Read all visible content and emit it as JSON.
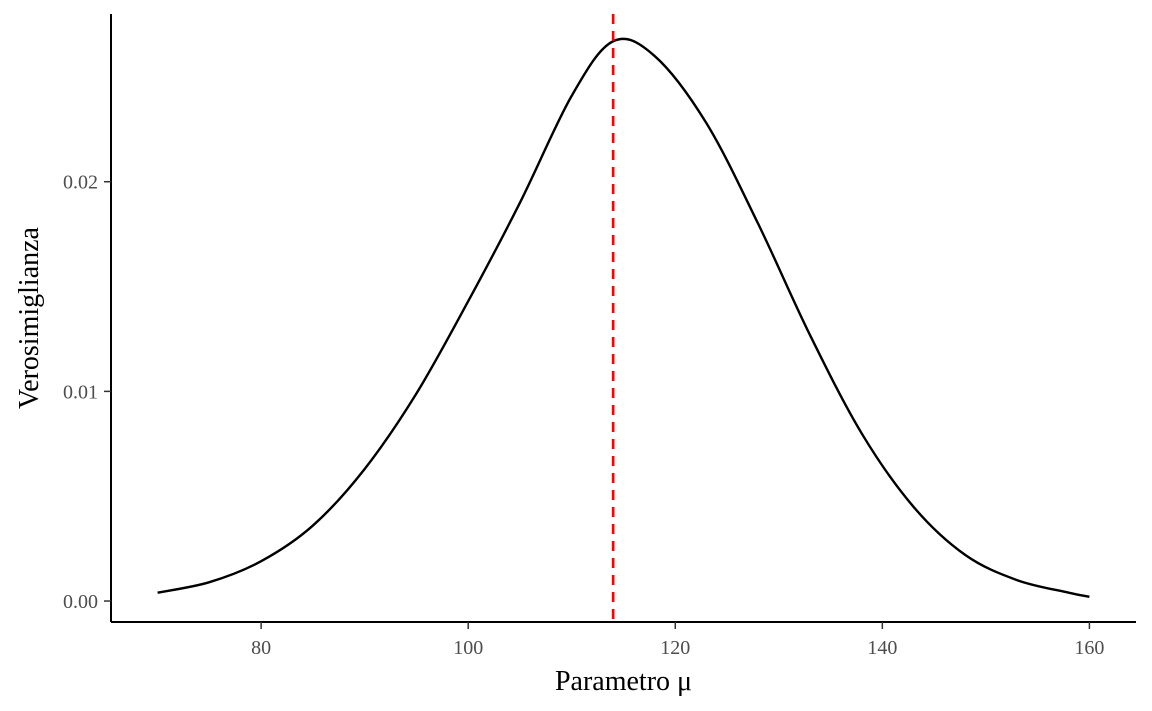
{
  "chart_data": {
    "type": "line",
    "xlabel": "Parametro μ",
    "ylabel": "Verosimiglianza",
    "xlim": [
      65.5,
      164.5
    ],
    "ylim": [
      -0.001,
      0.028
    ],
    "x_ticks": [
      80,
      100,
      120,
      140,
      160
    ],
    "x_tick_labels": [
      "80",
      "100",
      "120",
      "140",
      "160"
    ],
    "y_ticks": [
      0,
      0.01,
      0.02
    ],
    "y_tick_labels": [
      "0.00",
      "0.01",
      "0.02"
    ],
    "grid": false,
    "legend": "none",
    "series": [
      {
        "color": "#000000",
        "x": [
          70,
          75,
          80,
          85,
          90,
          95,
          100,
          105,
          110,
          114,
          118,
          123,
          128,
          133,
          138,
          143,
          148,
          153,
          158,
          160
        ],
        "y": [
          0.0004,
          0.0009,
          0.0019,
          0.0036,
          0.0063,
          0.0099,
          0.0143,
          0.019,
          0.0241,
          0.0267,
          0.026,
          0.0228,
          0.018,
          0.0127,
          0.008,
          0.0045,
          0.0022,
          0.001,
          0.0004,
          0.0002
        ]
      }
    ],
    "reference_lines": [
      {
        "axis": "x",
        "value": 114,
        "color": "#ff0000",
        "style": "dashed"
      }
    ]
  }
}
